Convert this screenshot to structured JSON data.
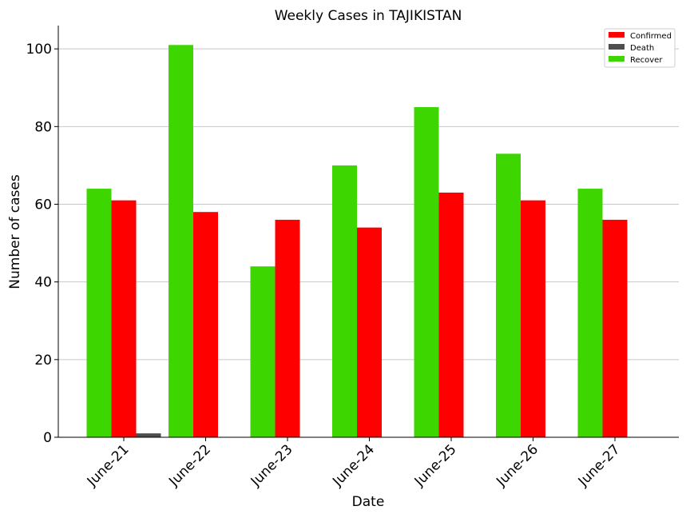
{
  "chart_data": {
    "type": "bar",
    "title": "Weekly Cases in TAJIKISTAN",
    "xlabel": "Date",
    "ylabel": "Number of cases",
    "categories": [
      "June-21",
      "June-22",
      "June-23",
      "June-24",
      "June-25",
      "June-26",
      "June-27"
    ],
    "series": [
      {
        "name": "Recover",
        "color": "#3dd600",
        "values": [
          64,
          101,
          44,
          70,
          85,
          73,
          64
        ]
      },
      {
        "name": "Confirmed",
        "color": "#ff0000",
        "values": [
          61,
          58,
          56,
          54,
          63,
          61,
          56
        ]
      },
      {
        "name": "Death",
        "color": "#4d4d4d",
        "values": [
          1,
          0,
          0,
          0,
          0,
          0,
          0
        ]
      }
    ],
    "legend_order": [
      "Confirmed",
      "Death",
      "Recover"
    ],
    "ylim": [
      0,
      106
    ],
    "yticks": [
      0,
      20,
      40,
      60,
      80,
      100
    ],
    "grid": "horizontal",
    "legend_position": "top-right"
  }
}
